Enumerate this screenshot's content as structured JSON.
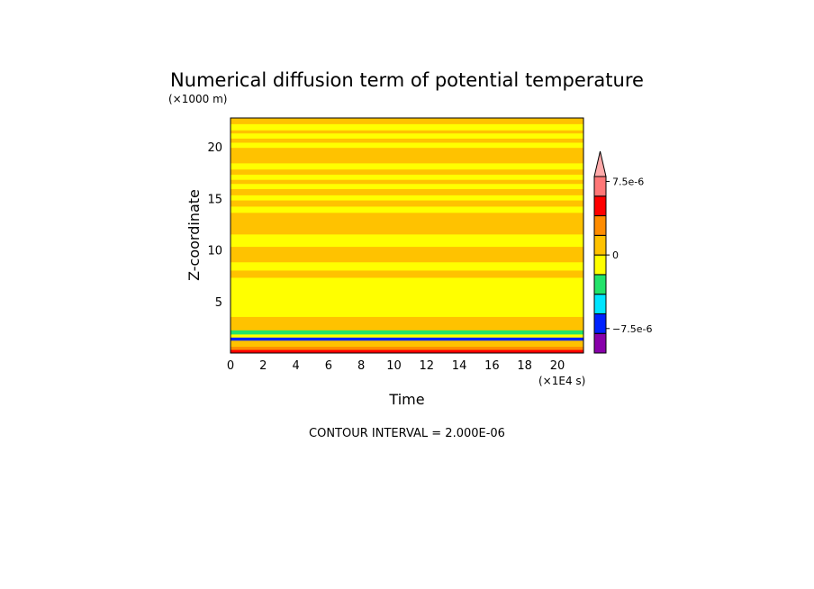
{
  "chart_data": {
    "type": "heatmap",
    "title": "Numerical diffusion term of potential temperature",
    "xlabel": "Time",
    "ylabel": "Z-coordinate",
    "x_unit": "(×1E4 s)",
    "y_unit": "(×1000 m)",
    "xlim": [
      0,
      21.6
    ],
    "ylim": [
      0,
      22.8
    ],
    "x_ticks": [
      "0",
      "2",
      "4",
      "6",
      "8",
      "10",
      "12",
      "14",
      "16",
      "18",
      "20"
    ],
    "y_ticks": [
      "5",
      "10",
      "15",
      "20"
    ],
    "contour_interval_label": "CONTOUR INTERVAL = 2.000E-06",
    "colorbar": {
      "levels": [
        -1e-05,
        -8e-06,
        -6e-06,
        -4e-06,
        -2e-06,
        0.0,
        2e-06,
        4e-06,
        6e-06,
        8e-06,
        1e-05
      ],
      "colors": [
        "#8800aa",
        "#0022ff",
        "#00e5ff",
        "#22e36a",
        "#ffff00",
        "#ffc200",
        "#ff8c00",
        "#ff0000",
        "#ff7777",
        "#ffaaaa"
      ],
      "labels": [
        {
          "text": "7.5e-6",
          "value": 7.5e-06
        },
        {
          "text": "0",
          "value": 0
        },
        {
          "text": "−7.5e-6",
          "value": -7.5e-06
        }
      ]
    },
    "vertical_profile": [
      {
        "z_range": [
          22.2,
          22.8
        ],
        "value": 1e-06
      },
      {
        "z_range": [
          21.6,
          22.2
        ],
        "value": -1e-06
      },
      {
        "z_range": [
          21.3,
          21.6
        ],
        "value": 1e-06
      },
      {
        "z_range": [
          20.8,
          21.3
        ],
        "value": -1e-06
      },
      {
        "z_range": [
          20.4,
          20.8
        ],
        "value": 1e-06
      },
      {
        "z_range": [
          19.9,
          20.4
        ],
        "value": -1e-06
      },
      {
        "z_range": [
          18.4,
          19.9
        ],
        "value": 1e-06
      },
      {
        "z_range": [
          17.8,
          18.4
        ],
        "value": -1e-06
      },
      {
        "z_range": [
          17.3,
          17.8
        ],
        "value": 1e-06
      },
      {
        "z_range": [
          16.8,
          17.3
        ],
        "value": -1e-06
      },
      {
        "z_range": [
          16.4,
          16.8
        ],
        "value": 1e-06
      },
      {
        "z_range": [
          15.9,
          16.4
        ],
        "value": -1e-06
      },
      {
        "z_range": [
          15.3,
          15.9
        ],
        "value": 1e-06
      },
      {
        "z_range": [
          14.8,
          15.3
        ],
        "value": -1e-06
      },
      {
        "z_range": [
          14.2,
          14.8
        ],
        "value": 1e-06
      },
      {
        "z_range": [
          13.6,
          14.2
        ],
        "value": -1e-06
      },
      {
        "z_range": [
          11.5,
          13.6
        ],
        "value": 1e-06
      },
      {
        "z_range": [
          10.3,
          11.5
        ],
        "value": -1e-06
      },
      {
        "z_range": [
          9.5,
          10.3
        ],
        "value": 1e-06
      },
      {
        "z_range": [
          8.8,
          9.5
        ],
        "value": 1e-06
      },
      {
        "z_range": [
          8.0,
          8.8
        ],
        "value": -1e-06
      },
      {
        "z_range": [
          7.3,
          8.0
        ],
        "value": 1e-06
      },
      {
        "z_range": [
          3.5,
          7.3
        ],
        "value": -1e-06
      },
      {
        "z_range": [
          3.0,
          3.5
        ],
        "value": 1e-06
      },
      {
        "z_range": [
          2.2,
          3.0
        ],
        "value": 1e-06
      },
      {
        "z_range": [
          1.8,
          2.2
        ],
        "value": -3e-06
      },
      {
        "z_range": [
          1.5,
          1.8
        ],
        "value": -1e-06
      },
      {
        "z_range": [
          1.2,
          1.5
        ],
        "value": -7e-06
      },
      {
        "z_range": [
          0.6,
          1.2
        ],
        "value": 1e-06
      },
      {
        "z_range": [
          0.3,
          0.6
        ],
        "value": 3e-06
      },
      {
        "z_range": [
          0.0,
          0.3
        ],
        "value": 5e-06
      }
    ]
  }
}
